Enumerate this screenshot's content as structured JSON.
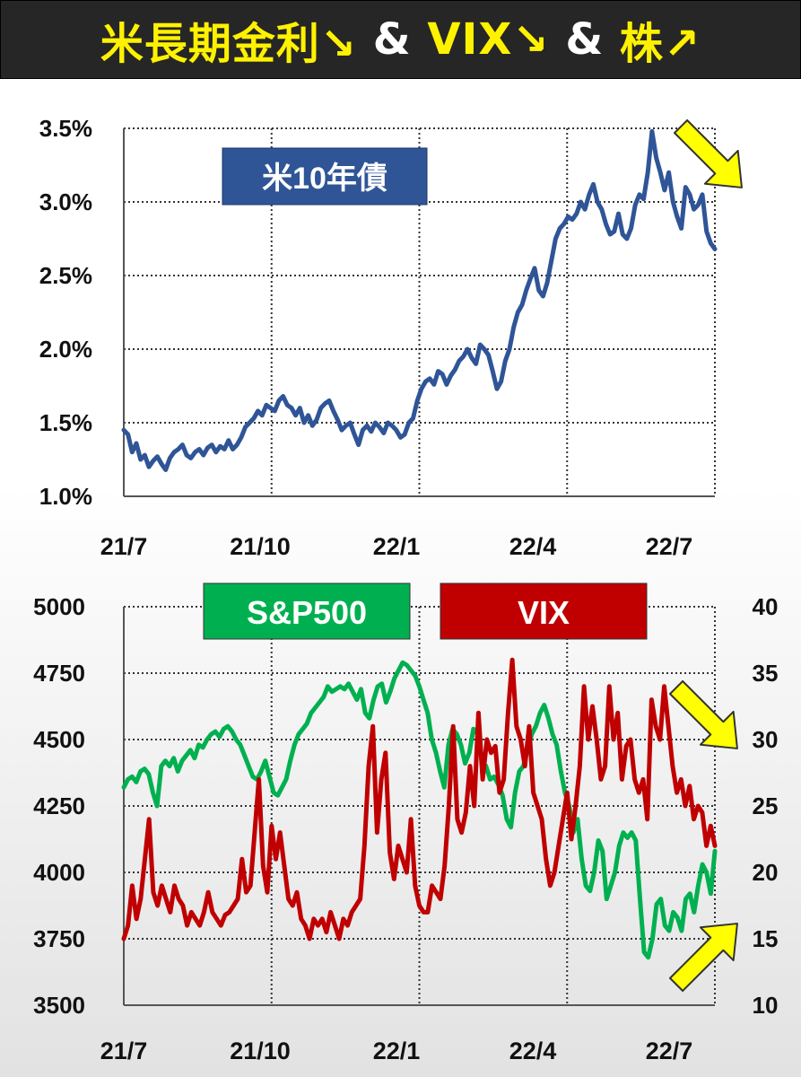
{
  "banner": {
    "part1": "米長期金利↘",
    "amp1": " & ",
    "part2": "VIX↘",
    "amp2": " & ",
    "part3": "株↗",
    "colors": {
      "background": "#262626",
      "highlight": "#fff200",
      "amp": "#ffffff"
    }
  },
  "chart_data": [
    {
      "type": "line",
      "x_tick_labels": [
        "21/7",
        "21/10",
        "22/1",
        "22/4",
        "22/7"
      ],
      "y_tick_labels": [
        "3.5%",
        "3.0%",
        "2.5%",
        "2.0%",
        "1.5%",
        "1.0%"
      ],
      "ylim": [
        1.0,
        3.5
      ],
      "grid": true,
      "series": [
        {
          "name": "米10年債",
          "color": "#2f5597",
          "values": [
            1.45,
            1.42,
            1.3,
            1.36,
            1.25,
            1.28,
            1.2,
            1.24,
            1.27,
            1.22,
            1.18,
            1.26,
            1.3,
            1.32,
            1.35,
            1.28,
            1.26,
            1.3,
            1.32,
            1.28,
            1.33,
            1.35,
            1.3,
            1.34,
            1.32,
            1.38,
            1.32,
            1.35,
            1.4,
            1.47,
            1.5,
            1.53,
            1.58,
            1.55,
            1.62,
            1.6,
            1.58,
            1.65,
            1.68,
            1.62,
            1.6,
            1.55,
            1.6,
            1.5,
            1.55,
            1.48,
            1.52,
            1.6,
            1.63,
            1.65,
            1.58,
            1.52,
            1.45,
            1.48,
            1.5,
            1.42,
            1.35,
            1.45,
            1.48,
            1.44,
            1.5,
            1.47,
            1.43,
            1.5,
            1.48,
            1.45,
            1.4,
            1.42,
            1.5,
            1.53,
            1.65,
            1.73,
            1.78,
            1.8,
            1.76,
            1.85,
            1.83,
            1.76,
            1.82,
            1.86,
            1.92,
            1.95,
            2.0,
            1.94,
            1.9,
            2.03,
            2.0,
            1.96,
            1.85,
            1.73,
            1.78,
            1.92,
            2.0,
            2.15,
            2.25,
            2.3,
            2.4,
            2.48,
            2.55,
            2.4,
            2.36,
            2.45,
            2.6,
            2.75,
            2.82,
            2.85,
            2.9,
            2.88,
            2.92,
            3.0,
            2.95,
            3.05,
            3.12,
            3.0,
            2.95,
            2.85,
            2.78,
            2.8,
            2.92,
            2.78,
            2.75,
            2.82,
            2.98,
            3.05,
            3.02,
            3.2,
            3.48,
            3.3,
            3.2,
            3.08,
            3.2,
            3.0,
            2.9,
            2.82,
            3.1,
            3.05,
            2.95,
            2.98,
            3.05,
            2.8,
            2.72,
            2.68
          ]
        }
      ]
    },
    {
      "type": "line",
      "x_tick_labels": [
        "21/7",
        "21/10",
        "22/1",
        "22/4",
        "22/7"
      ],
      "y_left_tick_labels": [
        "5000",
        "4750",
        "4500",
        "4250",
        "4000",
        "3750",
        "3500"
      ],
      "y_right_tick_labels": [
        "40",
        "35",
        "30",
        "25",
        "20",
        "15",
        "10"
      ],
      "ylim_left": [
        3500,
        5000
      ],
      "ylim_right": [
        10,
        40
      ],
      "grid": true,
      "series": [
        {
          "name": "S&P500",
          "color": "#00b050",
          "axis": "left",
          "values": [
            4320,
            4350,
            4360,
            4340,
            4380,
            4390,
            4370,
            4300,
            4250,
            4400,
            4420,
            4400,
            4430,
            4380,
            4420,
            4440,
            4460,
            4430,
            4480,
            4470,
            4500,
            4520,
            4530,
            4510,
            4540,
            4550,
            4530,
            4500,
            4480,
            4440,
            4400,
            4360,
            4350,
            4380,
            4420,
            4360,
            4300,
            4290,
            4320,
            4350,
            4420,
            4480,
            4520,
            4540,
            4560,
            4600,
            4620,
            4640,
            4660,
            4700,
            4680,
            4690,
            4700,
            4690,
            4710,
            4680,
            4650,
            4690,
            4600,
            4580,
            4650,
            4700,
            4710,
            4640,
            4680,
            4730,
            4760,
            4790,
            4780,
            4760,
            4740,
            4700,
            4650,
            4600,
            4500,
            4450,
            4380,
            4320,
            4480,
            4540,
            4520,
            4480,
            4410,
            4450,
            4540,
            4520,
            4420,
            4400,
            4350,
            4360,
            4330,
            4290,
            4200,
            4170,
            4300,
            4380,
            4400,
            4460,
            4520,
            4550,
            4600,
            4630,
            4580,
            4520,
            4480,
            4380,
            4300,
            4250,
            4150,
            4200,
            4050,
            3950,
            3930,
            4000,
            4120,
            4080,
            3900,
            3950,
            4000,
            4100,
            4150,
            4130,
            4150,
            4120,
            3900,
            3700,
            3680,
            3750,
            3880,
            3900,
            3800,
            3780,
            3850,
            3830,
            3780,
            3900,
            3920,
            3850,
            3950,
            4030,
            4000,
            3920,
            4080
          ]
        },
        {
          "name": "VIX",
          "color": "#c00000",
          "axis": "right",
          "values": [
            15.0,
            16.0,
            19.0,
            16.5,
            18.0,
            21.0,
            24.0,
            18.5,
            17.5,
            19.0,
            18.0,
            17.0,
            19.0,
            18.0,
            17.5,
            16.0,
            17.0,
            16.5,
            16.0,
            17.0,
            18.5,
            17.0,
            16.5,
            16.0,
            16.8,
            17.0,
            17.5,
            18.0,
            21.0,
            18.5,
            19.0,
            23.0,
            27.0,
            20.5,
            18.5,
            23.5,
            21.0,
            23.0,
            20.5,
            18.0,
            17.5,
            18.5,
            16.5,
            16.0,
            15.0,
            16.5,
            16.0,
            16.5,
            15.5,
            17.0,
            16.0,
            15.0,
            16.5,
            16.0,
            17.0,
            17.5,
            18.0,
            22.0,
            28.0,
            31.0,
            23.0,
            27.0,
            29.0,
            21.5,
            19.5,
            22.0,
            21.0,
            20.0,
            24.0,
            19.0,
            17.5,
            17.0,
            17.0,
            19.0,
            18.5,
            18.0,
            20.5,
            25.0,
            31.0,
            24.0,
            23.0,
            24.5,
            28.0,
            25.0,
            32.0,
            27.0,
            30.0,
            29.0,
            29.5,
            26.0,
            27.0,
            32.0,
            36.0,
            31.0,
            30.0,
            28.0,
            31.0,
            26.0,
            25.0,
            24.0,
            21.0,
            19.0,
            20.0,
            22.0,
            24.0,
            26.0,
            22.5,
            25.0,
            28.0,
            34.0,
            30.0,
            32.5,
            30.0,
            27.0,
            28.0,
            34.0,
            30.0,
            32.0,
            27.0,
            29.5,
            30.0,
            27.0,
            26.0,
            27.0,
            24.0,
            33.0,
            31.0,
            30.0,
            34.0,
            31.0,
            28.0,
            26.0,
            27.0,
            25.0,
            26.5,
            24.0,
            25.0,
            24.5,
            22.0,
            23.5,
            22.0
          ]
        }
      ]
    }
  ]
}
